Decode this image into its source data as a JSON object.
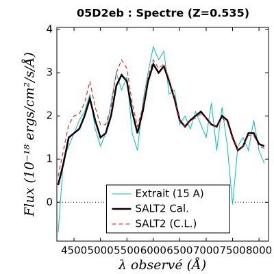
{
  "chart_data": {
    "type": "line",
    "title": "05D2eb : Spectre (Z=0.535)",
    "x_label": "λ observé (Å)",
    "y_label": "Flux (10⁻¹⁸ ergs/cm²/s/Å)",
    "x": [
      4200,
      4300,
      4400,
      4500,
      4600,
      4700,
      4800,
      4900,
      5000,
      5100,
      5200,
      5300,
      5400,
      5500,
      5600,
      5700,
      5800,
      5900,
      6000,
      6100,
      6200,
      6300,
      6400,
      6500,
      6600,
      6700,
      6800,
      6900,
      7000,
      7100,
      7200,
      7300,
      7400,
      7500,
      7600,
      7700,
      7800,
      7900,
      8000,
      8100
    ],
    "series": [
      {
        "name": "Extrait (15 A)",
        "color": "#00bfbf",
        "width": 1,
        "dash": false,
        "values": [
          -0.7,
          1.0,
          1.3,
          1.6,
          1.9,
          2.1,
          2.5,
          1.7,
          1.3,
          1.6,
          2.3,
          3.0,
          2.6,
          2.9,
          1.6,
          1.2,
          2.3,
          3.0,
          3.6,
          3.3,
          3.5,
          2.5,
          2.6,
          1.8,
          2.0,
          1.7,
          2.1,
          1.8,
          1.5,
          2.3,
          1.2,
          2.2,
          1.3,
          -0.05,
          1.3,
          1.5,
          1.2,
          1.9,
          1.2,
          0.9
        ]
      },
      {
        "name": "SALT2 Cal.",
        "color": "#000000",
        "width": 2.5,
        "dash": false,
        "values": [
          0.4,
          0.9,
          1.5,
          1.6,
          1.7,
          2.0,
          2.4,
          1.9,
          1.5,
          1.6,
          2.0,
          2.7,
          2.95,
          2.8,
          2.1,
          1.6,
          2.1,
          2.8,
          3.2,
          3.0,
          3.15,
          2.8,
          2.4,
          1.9,
          1.75,
          1.9,
          2.0,
          2.1,
          1.95,
          1.8,
          1.75,
          2.0,
          1.9,
          1.5,
          1.2,
          1.3,
          1.6,
          1.6,
          1.35,
          1.3
        ]
      },
      {
        "name": "SALT2 (C.L.)",
        "color": "#ff0000",
        "width": 1,
        "dash": true,
        "values": [
          0.6,
          1.2,
          1.8,
          2.0,
          2.05,
          2.3,
          2.8,
          2.2,
          1.8,
          1.8,
          2.2,
          3.0,
          3.3,
          3.1,
          2.3,
          1.75,
          2.2,
          2.9,
          3.3,
          3.1,
          3.2,
          2.85,
          2.4,
          1.9,
          1.75,
          1.9,
          1.95,
          2.05,
          1.95,
          1.8,
          1.75,
          1.95,
          1.85,
          1.5,
          1.2,
          1.3,
          1.55,
          1.55,
          1.3,
          1.25
        ]
      }
    ],
    "xlim": [
      4175,
      8180
    ],
    "ylim": [
      -0.9,
      4.05
    ],
    "xticks": [
      4500,
      5000,
      5500,
      6000,
      6500,
      7000,
      7500,
      8000
    ],
    "yticks": [
      0,
      1,
      2,
      3,
      4
    ],
    "reference_line": 0,
    "legend": "lower center"
  }
}
